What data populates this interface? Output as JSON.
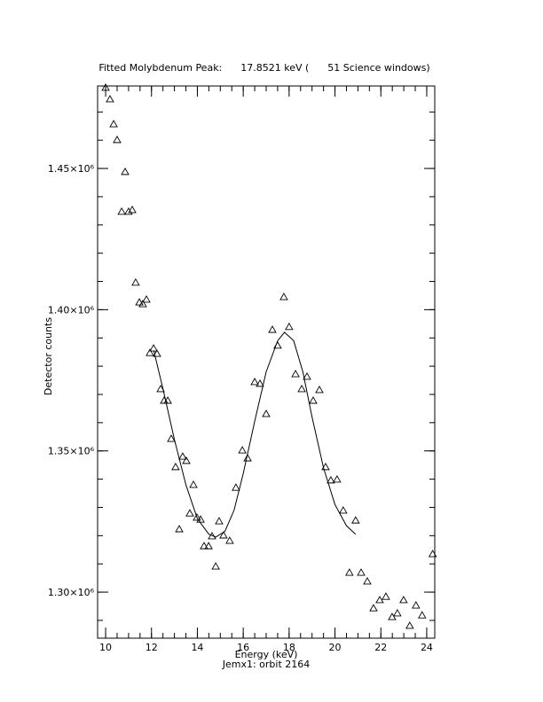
{
  "chart_data": {
    "type": "scatter",
    "title": "Fitted Molybdenum Peak:      17.8521 keV (      51 Science windows)",
    "x_label": "Energy (keV)",
    "subtitle": "Jemx1: orbit 2164",
    "y_label": "Detector counts",
    "xlim": [
      9.65,
      24.35
    ],
    "ylim": [
      1283700,
      1479200
    ],
    "xticks": [
      10,
      12,
      14,
      16,
      18,
      20,
      22,
      24
    ],
    "yticks": [
      {
        "value": 1300000,
        "label": "1.30×10⁶"
      },
      {
        "value": 1350000,
        "label": "1.35×10⁶"
      },
      {
        "value": 1400000,
        "label": "1.40×10⁶"
      },
      {
        "value": 1450000,
        "label": "1.45×10⁶"
      }
    ],
    "color": "#000000",
    "series": [
      {
        "style": "triangle",
        "x": [
          10.0,
          10.19,
          10.35,
          10.5,
          10.7,
          10.85,
          11.0,
          11.16,
          11.31,
          11.47,
          11.62,
          11.78,
          11.93,
          12.09,
          12.24,
          12.4,
          12.55,
          12.71,
          12.86,
          13.05,
          13.21,
          13.36,
          13.52,
          13.67,
          13.83,
          13.98,
          14.14,
          14.29,
          14.49,
          14.64,
          14.8,
          14.95,
          15.14,
          15.41,
          15.68,
          15.96,
          16.19,
          16.5,
          16.73,
          17.0,
          17.27,
          17.5,
          17.77,
          18.0,
          18.28,
          18.55,
          18.78,
          19.05,
          19.32,
          19.59,
          19.82,
          20.09,
          20.36,
          20.63,
          20.9,
          21.14,
          21.41,
          21.68,
          21.95,
          22.22,
          22.49,
          22.72,
          22.99,
          23.26,
          23.53,
          23.8,
          24.26
        ],
        "values": [
          1478600,
          1474500,
          1465700,
          1460100,
          1434700,
          1448800,
          1434700,
          1435300,
          1409600,
          1402600,
          1402000,
          1403600,
          1384700,
          1386300,
          1384400,
          1371900,
          1367800,
          1367800,
          1354300,
          1344300,
          1322300,
          1348000,
          1346500,
          1327900,
          1338000,
          1326400,
          1325700,
          1316300,
          1316300,
          1319800,
          1309100,
          1325100,
          1320100,
          1318200,
          1337000,
          1350200,
          1347400,
          1374400,
          1373800,
          1363100,
          1392900,
          1387300,
          1404500,
          1393900,
          1377200,
          1371900,
          1376300,
          1367800,
          1371600,
          1344300,
          1339600,
          1339900,
          1328900,
          1306900,
          1325400,
          1306900,
          1303800,
          1294300,
          1297200,
          1298400,
          1291200,
          1292500,
          1297200,
          1288100,
          1295300,
          1291800,
          1313500
        ]
      },
      {
        "style": "line",
        "x": [
          12.1,
          12.5,
          13.0,
          13.5,
          14.0,
          14.5,
          14.8,
          15.2,
          15.6,
          16.0,
          16.5,
          17.0,
          17.5,
          17.8,
          18.2,
          18.6,
          19.0,
          19.5,
          20.0,
          20.5,
          20.9
        ],
        "values": [
          1385500,
          1372000,
          1354000,
          1338000,
          1326000,
          1320500,
          1319500,
          1321500,
          1329000,
          1342000,
          1360500,
          1378000,
          1389000,
          1392000,
          1389000,
          1378000,
          1362000,
          1344000,
          1331000,
          1323500,
          1320500
        ]
      }
    ]
  }
}
